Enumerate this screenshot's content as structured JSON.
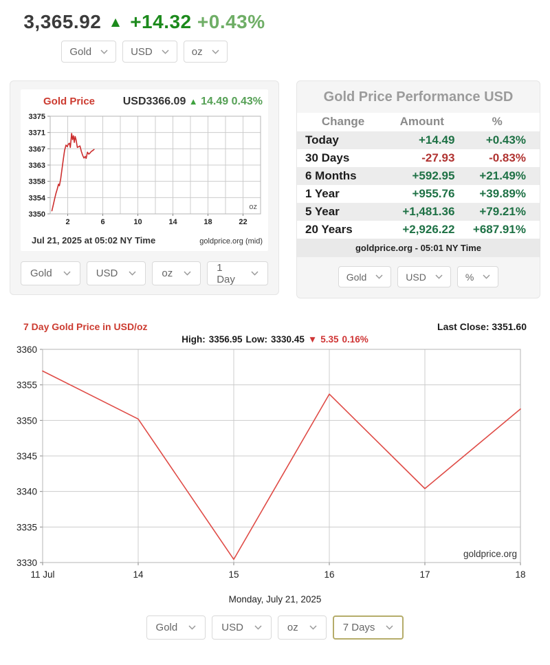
{
  "header": {
    "price": "3,365.92",
    "direction_icon": "▲",
    "change": "+14.32",
    "change_percent": "+0.43%",
    "selectors": [
      {
        "name": "metal-select",
        "value": "Gold"
      },
      {
        "name": "currency-select",
        "value": "USD"
      },
      {
        "name": "unit-select",
        "value": "oz"
      }
    ]
  },
  "mini_chart_panel": {
    "title": "Gold Price",
    "quote_price": "USD3366.09",
    "quote_icon": "▲",
    "quote_change": "14.49",
    "quote_change_percent": "0.43%",
    "unit_label": "oz",
    "caption_left": "Jul 21, 2025 at 05:02 NY Time",
    "caption_right": "goldprice.org (mid)",
    "selectors": [
      {
        "name": "metal-select",
        "value": "Gold"
      },
      {
        "name": "currency-select",
        "value": "USD"
      },
      {
        "name": "unit-select",
        "value": "oz"
      },
      {
        "name": "range-select",
        "value": "1 Day"
      }
    ]
  },
  "performance_panel": {
    "title": "Gold Price Performance USD",
    "columns": [
      "Change",
      "Amount",
      "%"
    ],
    "rows": [
      {
        "label": "Today",
        "amount": "+14.49",
        "percent": "+0.43%",
        "direction": "up"
      },
      {
        "label": "30 Days",
        "amount": "-27.93",
        "percent": "-0.83%",
        "direction": "down"
      },
      {
        "label": "6 Months",
        "amount": "+592.95",
        "percent": "+21.49%",
        "direction": "up"
      },
      {
        "label": "1 Year",
        "amount": "+955.76",
        "percent": "+39.89%",
        "direction": "up"
      },
      {
        "label": "5 Year",
        "amount": "+1,481.36",
        "percent": "+79.21%",
        "direction": "up"
      },
      {
        "label": "20 Years",
        "amount": "+2,926.22",
        "percent": "+687.91%",
        "direction": "up"
      }
    ],
    "footer": "goldprice.org - 05:01 NY Time",
    "selectors": [
      {
        "name": "metal-select",
        "value": "Gold"
      },
      {
        "name": "currency-select",
        "value": "USD"
      },
      {
        "name": "mode-select",
        "value": "%"
      }
    ]
  },
  "week_section": {
    "title": "7 Day Gold Price in USD/oz",
    "last_close": "Last Close: 3351.60",
    "high_label": "High:",
    "high_value": "3356.95",
    "low_label": "Low:",
    "low_value": "3330.45",
    "down_icon": "▼",
    "change_value": "5.35",
    "change_percent": "0.16%",
    "date_caption": "Monday, July 21, 2025",
    "selectors": [
      {
        "name": "metal-select",
        "value": "Gold"
      },
      {
        "name": "currency-select",
        "value": "USD"
      },
      {
        "name": "unit-select",
        "value": "oz"
      },
      {
        "name": "range-select",
        "value": "7 Days",
        "highlighted": true
      }
    ]
  },
  "chart_data": [
    {
      "id": "intraday_gold",
      "type": "line",
      "title": "Gold Price",
      "subtitle": "USD3366.09 ▲ 14.49 0.43%",
      "unit": "oz",
      "x_hours": [
        0.2,
        0.35,
        0.5,
        0.65,
        0.8,
        0.95,
        1.05,
        1.2,
        1.35,
        1.5,
        1.65,
        1.8,
        1.95,
        2.05,
        2.2,
        2.3,
        2.45,
        2.55,
        2.65,
        2.75,
        2.85,
        2.95,
        3.1,
        3.25,
        3.4,
        3.55,
        3.7,
        3.85,
        4.0,
        4.1,
        4.25,
        4.4,
        4.55,
        4.7,
        4.85,
        5.0
      ],
      "values": [
        3350.8,
        3352.3,
        3353.8,
        3355.2,
        3356.3,
        3357.6,
        3357.2,
        3359.0,
        3361.5,
        3364.0,
        3366.3,
        3367.6,
        3367.2,
        3367.8,
        3368.1,
        3367.0,
        3370.6,
        3369.0,
        3370.0,
        3368.3,
        3369.8,
        3369.0,
        3367.0,
        3367.2,
        3367.4,
        3366.0,
        3365.0,
        3364.3,
        3364.7,
        3364.2,
        3365.8,
        3365.3,
        3365.6,
        3366.0,
        3366.2,
        3366.5
      ],
      "x_tick_labels": [
        2,
        6,
        10,
        14,
        18,
        22
      ],
      "y_tick_labels": [
        3375,
        3371,
        3367,
        3363,
        3358,
        3354,
        3350
      ],
      "xlim": [
        0,
        24
      ],
      "ylim": [
        3350,
        3375
      ],
      "grid": true,
      "line_color": "#cc2e2e",
      "caption_left": "Jul 21, 2025 at 05:02 NY Time",
      "caption_right": "goldprice.org (mid)"
    },
    {
      "id": "seven_day_gold",
      "type": "line",
      "title": "7 Day Gold Price in USD/oz",
      "categories": [
        "11 Jul",
        "14",
        "15",
        "16",
        "17",
        "18"
      ],
      "values": [
        3356.95,
        3350.2,
        3330.45,
        3353.7,
        3340.4,
        3351.6
      ],
      "y_ticks": [
        3360,
        3355,
        3350,
        3345,
        3340,
        3335,
        3330
      ],
      "ylim": [
        3330,
        3360
      ],
      "grid": true,
      "line_color": "#df4b46",
      "watermark": "goldprice.org",
      "high": 3356.95,
      "low": 3330.45,
      "last_close": 3351.6
    }
  ],
  "colors": {
    "title_red": "#cc3b30",
    "intraday_line": "#cc2e2e",
    "week_line": "#df4b46",
    "positive_dark": "#1e7145",
    "positive_bright": "#1c8a1c",
    "positive_light": "#6fae66",
    "negative": "#b03331",
    "panel_background": "#f5f5f5",
    "grid_line": "#cccccc",
    "table_header_gray": "#8a8a8a",
    "highlighted_select_border": "#b5ac6a"
  }
}
